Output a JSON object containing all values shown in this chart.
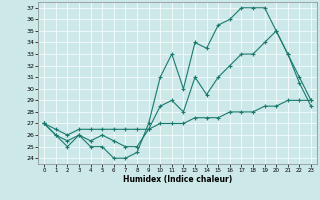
{
  "xlabel": "Humidex (Indice chaleur)",
  "ylabel": "",
  "xlim": [
    -0.5,
    23.5
  ],
  "ylim": [
    23.5,
    37.5
  ],
  "yticks": [
    24,
    25,
    26,
    27,
    28,
    29,
    30,
    31,
    32,
    33,
    34,
    35,
    36,
    37
  ],
  "xticks": [
    0,
    1,
    2,
    3,
    4,
    5,
    6,
    7,
    8,
    9,
    10,
    11,
    12,
    13,
    14,
    15,
    16,
    17,
    18,
    19,
    20,
    21,
    22,
    23
  ],
  "bg_color": "#cce8e8",
  "line_color": "#1a7a6e",
  "grid_color": "#ffffff",
  "line1_x": [
    0,
    1,
    2,
    3,
    4,
    5,
    6,
    7,
    8,
    9,
    10,
    11,
    12,
    13,
    14,
    15,
    16,
    17,
    18,
    19,
    20,
    21,
    22,
    23
  ],
  "line1_y": [
    27,
    26,
    25,
    26,
    25,
    25,
    24,
    24,
    24.5,
    27,
    31,
    33,
    30,
    34,
    33.5,
    35.5,
    36,
    37,
    37,
    37,
    35,
    33,
    30.5,
    28.5
  ],
  "line2_x": [
    0,
    1,
    2,
    3,
    4,
    5,
    6,
    7,
    8,
    9,
    10,
    11,
    12,
    13,
    14,
    15,
    16,
    17,
    18,
    19,
    20,
    21,
    22,
    23
  ],
  "line2_y": [
    27,
    26,
    25.5,
    26,
    25.5,
    26,
    25.5,
    25,
    25,
    26.5,
    28.5,
    29,
    28,
    31,
    29.5,
    31,
    32,
    33,
    33,
    34,
    35,
    33,
    31,
    29
  ],
  "line3_x": [
    0,
    1,
    2,
    3,
    4,
    5,
    6,
    7,
    8,
    9,
    10,
    11,
    12,
    13,
    14,
    15,
    16,
    17,
    18,
    19,
    20,
    21,
    22,
    23
  ],
  "line3_y": [
    27,
    26.5,
    26,
    26.5,
    26.5,
    26.5,
    26.5,
    26.5,
    26.5,
    26.5,
    27,
    27,
    27,
    27.5,
    27.5,
    27.5,
    28,
    28,
    28,
    28.5,
    28.5,
    29,
    29,
    29
  ]
}
